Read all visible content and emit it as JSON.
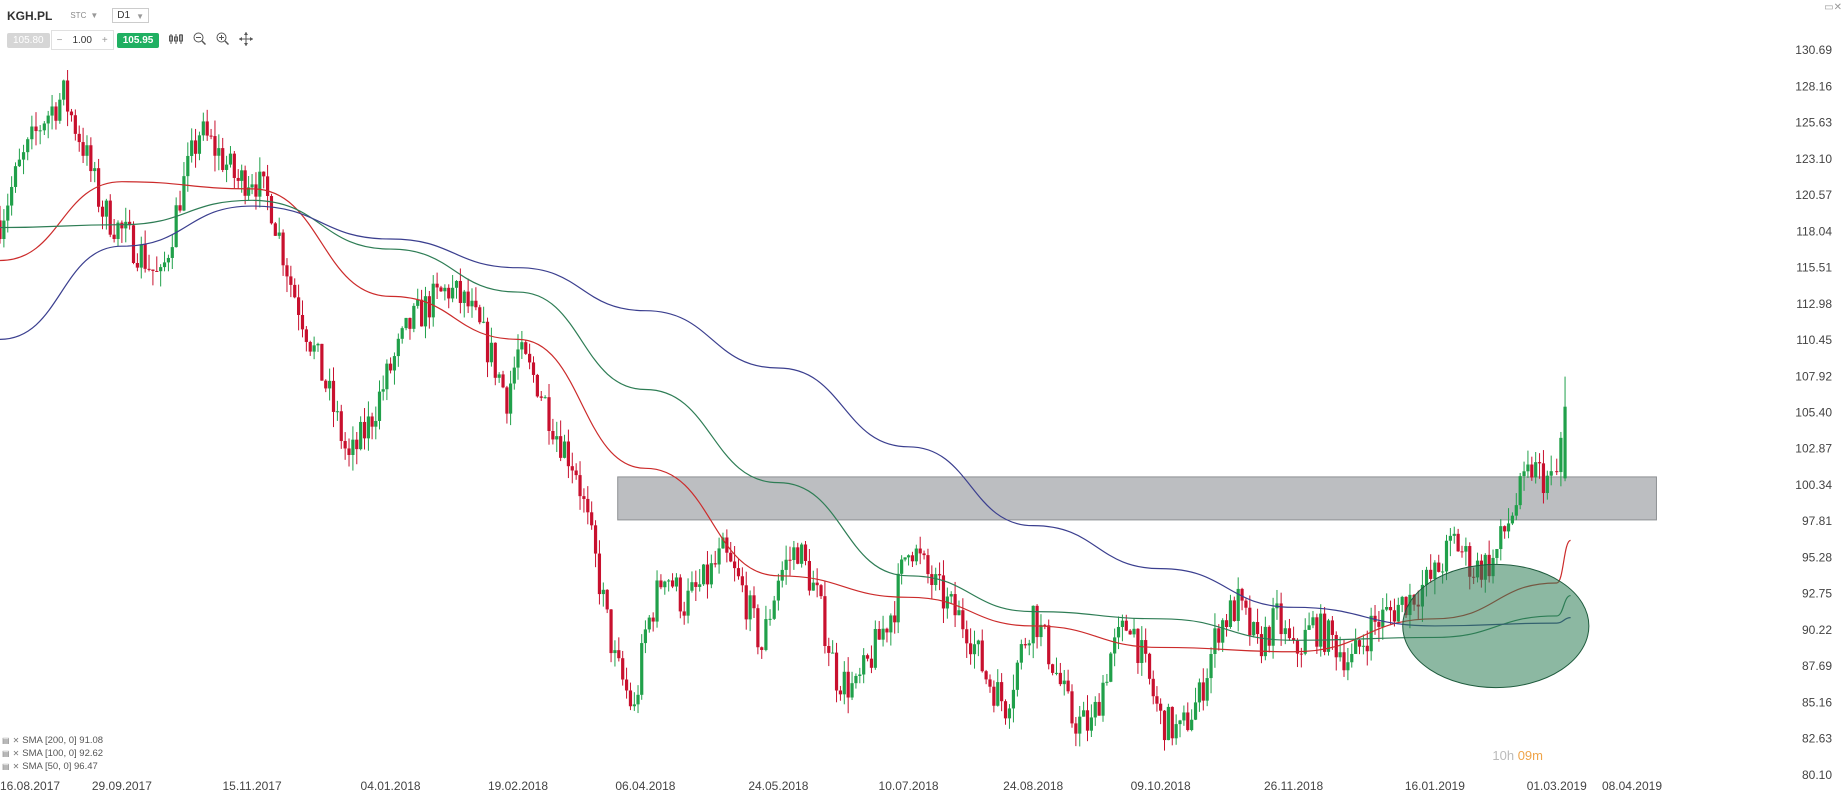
{
  "header": {
    "symbol": "KGH.PL",
    "type_label": "STC",
    "timeframe": "D1"
  },
  "trade": {
    "bid": "105.80",
    "minus": "−",
    "quantity": "1.00",
    "plus": "+",
    "ask": "105.95"
  },
  "icons": [
    "chart-type-icon",
    "zoom-out-icon",
    "zoom-in-icon",
    "crosshair-icon"
  ],
  "timer": {
    "hours": "10h",
    "minutes": "09m"
  },
  "legend": [
    {
      "label": "SMA [200, 0] 91.08",
      "color": "#3b3f8f"
    },
    {
      "label": "SMA [100, 0] 92.62",
      "color": "#2e7d55"
    },
    {
      "label": "SMA [50, 0] 96.47",
      "color": "#cc2b2b"
    }
  ],
  "colors": {
    "up": "#20a04a",
    "down": "#c8102e",
    "sma50": "#cc2b2b",
    "sma100": "#2e7d55",
    "sma200": "#3b3f8f",
    "zone": "#b0b3b6",
    "highlight": "#2e7d55"
  },
  "chart_data": {
    "type": "candlestick",
    "ylim": [
      80.1,
      130.69
    ],
    "y_ticks": [
      "130.69",
      "128.16",
      "125.63",
      "123.10",
      "120.57",
      "118.04",
      "115.51",
      "112.98",
      "110.45",
      "107.92",
      "105.40",
      "102.87",
      "100.34",
      "97.81",
      "95.28",
      "92.75",
      "90.22",
      "87.69",
      "85.16",
      "82.63",
      "80.10"
    ],
    "x_ticks": [
      "16.08.2017",
      "29.09.2017",
      "15.11.2017",
      "04.01.2018",
      "19.02.2018",
      "06.04.2018",
      "24.05.2018",
      "10.07.2018",
      "24.08.2018",
      "09.10.2018",
      "26.11.2018",
      "16.01.2019",
      "01.03.2019",
      "08.04.2019"
    ],
    "close_path": [
      [
        "16.08.2017",
        118.8
      ],
      [
        "23.08.2017",
        122.5
      ],
      [
        "01.09.2017",
        126.0
      ],
      [
        "08.09.2017",
        127.5
      ],
      [
        "15.09.2017",
        124.0
      ],
      [
        "22.09.2017",
        119.5
      ],
      [
        "29.09.2017",
        118.0
      ],
      [
        "06.10.2017",
        116.5
      ],
      [
        "13.10.2017",
        114.5
      ],
      [
        "20.10.2017",
        120.5
      ],
      [
        "27.10.2017",
        125.0
      ],
      [
        "03.11.2017",
        123.5
      ],
      [
        "10.11.2017",
        121.5
      ],
      [
        "15.11.2017",
        122.0
      ],
      [
        "22.11.2017",
        119.8
      ],
      [
        "29.11.2017",
        114.5
      ],
      [
        "06.12.2017",
        110.5
      ],
      [
        "13.12.2017",
        106.5
      ],
      [
        "20.12.2017",
        102.0
      ],
      [
        "27.12.2017",
        104.5
      ],
      [
        "04.01.2018",
        108.5
      ],
      [
        "11.01.2018",
        111.5
      ],
      [
        "18.01.2018",
        113.0
      ],
      [
        "25.01.2018",
        114.0
      ],
      [
        "01.02.2018",
        112.8
      ],
      [
        "08.02.2018",
        110.0
      ],
      [
        "15.02.2018",
        106.5
      ],
      [
        "19.02.2018",
        109.5
      ],
      [
        "26.02.2018",
        107.5
      ],
      [
        "05.03.2018",
        104.0
      ],
      [
        "12.03.2018",
        101.5
      ],
      [
        "19.03.2018",
        95.0
      ],
      [
        "26.03.2018",
        88.0
      ],
      [
        "02.04.2018",
        84.5
      ],
      [
        "06.04.2018",
        90.0
      ],
      [
        "13.04.2018",
        94.5
      ],
      [
        "20.04.2018",
        92.0
      ],
      [
        "27.04.2018",
        93.5
      ],
      [
        "04.05.2018",
        95.5
      ],
      [
        "11.05.2018",
        93.0
      ],
      [
        "18.05.2018",
        89.0
      ],
      [
        "24.05.2018",
        94.0
      ],
      [
        "31.05.2018",
        96.0
      ],
      [
        "07.06.2018",
        92.5
      ],
      [
        "14.06.2018",
        87.0
      ],
      [
        "21.06.2018",
        86.0
      ],
      [
        "28.06.2018",
        89.0
      ],
      [
        "05.07.2018",
        92.0
      ],
      [
        "10.07.2018",
        96.5
      ],
      [
        "17.07.2018",
        94.0
      ],
      [
        "24.07.2018",
        92.0
      ],
      [
        "31.07.2018",
        90.5
      ],
      [
        "07.08.2018",
        87.0
      ],
      [
        "14.08.2018",
        85.0
      ],
      [
        "24.08.2018",
        91.5
      ],
      [
        "31.08.2018",
        88.0
      ],
      [
        "07.09.2018",
        84.0
      ],
      [
        "14.09.2018",
        83.5
      ],
      [
        "21.09.2018",
        88.5
      ],
      [
        "28.09.2018",
        91.0
      ],
      [
        "05.10.2018",
        86.5
      ],
      [
        "09.10.2018",
        84.0
      ],
      [
        "16.10.2018",
        83.0
      ],
      [
        "23.10.2018",
        85.5
      ],
      [
        "30.10.2018",
        90.5
      ],
      [
        "06.11.2018",
        92.0
      ],
      [
        "13.11.2018",
        89.0
      ],
      [
        "20.11.2018",
        91.0
      ],
      [
        "26.11.2018",
        88.5
      ],
      [
        "03.12.2018",
        90.5
      ],
      [
        "10.12.2018",
        89.5
      ],
      [
        "17.12.2018",
        88.0
      ],
      [
        "24.12.2018",
        90.5
      ],
      [
        "31.12.2018",
        91.5
      ],
      [
        "07.01.2019",
        92.5
      ],
      [
        "16.01.2019",
        94.0
      ],
      [
        "23.01.2019",
        96.5
      ],
      [
        "30.01.2019",
        94.5
      ],
      [
        "06.02.2019",
        95.0
      ],
      [
        "13.02.2019",
        98.5
      ],
      [
        "20.02.2019",
        101.5
      ],
      [
        "27.02.2019",
        100.5
      ],
      [
        "01.03.2019",
        101.0
      ],
      [
        "04.03.2019",
        105.8
      ]
    ],
    "sma": [
      {
        "name": "SMA [50, 0] 96.47",
        "points": [
          [
            "16.08.2017",
            116.0
          ],
          [
            "29.09.2017",
            121.5
          ],
          [
            "15.11.2017",
            121.0
          ],
          [
            "04.01.2018",
            113.5
          ],
          [
            "19.02.2018",
            110.5
          ],
          [
            "06.04.2018",
            101.5
          ],
          [
            "24.05.2018",
            94.0
          ],
          [
            "10.07.2018",
            92.5
          ],
          [
            "24.08.2018",
            90.5
          ],
          [
            "09.10.2018",
            89.0
          ],
          [
            "26.11.2018",
            88.7
          ],
          [
            "16.01.2019",
            91.0
          ],
          [
            "01.03.2019",
            93.5
          ],
          [
            "06.03.2019",
            96.47
          ]
        ]
      },
      {
        "name": "SMA [100, 0] 92.62",
        "points": [
          [
            "16.08.2017",
            118.3
          ],
          [
            "29.09.2017",
            118.5
          ],
          [
            "15.11.2017",
            120.2
          ],
          [
            "04.01.2018",
            116.8
          ],
          [
            "19.02.2018",
            113.8
          ],
          [
            "06.04.2018",
            107.0
          ],
          [
            "24.05.2018",
            100.5
          ],
          [
            "10.07.2018",
            94.0
          ],
          [
            "24.08.2018",
            91.5
          ],
          [
            "09.10.2018",
            91.0
          ],
          [
            "26.11.2018",
            89.5
          ],
          [
            "16.01.2019",
            89.7
          ],
          [
            "01.03.2019",
            91.2
          ],
          [
            "06.03.2019",
            92.62
          ]
        ]
      },
      {
        "name": "SMA [200, 0] 91.08",
        "points": [
          [
            "16.08.2017",
            110.5
          ],
          [
            "29.09.2017",
            117.0
          ],
          [
            "15.11.2017",
            119.8
          ],
          [
            "04.01.2018",
            117.5
          ],
          [
            "19.02.2018",
            115.5
          ],
          [
            "06.04.2018",
            112.5
          ],
          [
            "24.05.2018",
            108.5
          ],
          [
            "10.07.2018",
            103.0
          ],
          [
            "24.08.2018",
            97.5
          ],
          [
            "09.10.2018",
            94.5
          ],
          [
            "26.11.2018",
            91.8
          ],
          [
            "16.01.2019",
            90.5
          ],
          [
            "01.03.2019",
            90.7
          ],
          [
            "06.03.2019",
            91.08
          ]
        ]
      }
    ],
    "zone": {
      "from": "27.03.2018",
      "to": "06.04.2019",
      "low": 97.9,
      "high": 100.9
    },
    "highlight_ellipse": {
      "center": [
        "07.02.2019",
        90.5
      ],
      "rx_days": 24,
      "ry": 4.3
    }
  }
}
